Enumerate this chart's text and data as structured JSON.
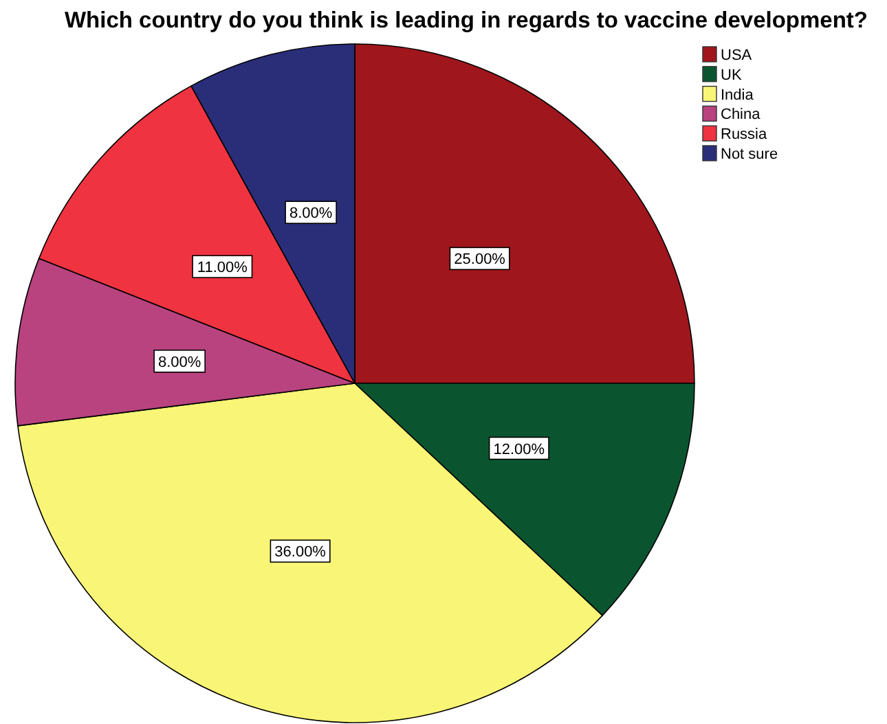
{
  "chart_data": {
    "type": "pie",
    "title": "Which country do you think is leading in regards to vaccine development?",
    "categories": [
      "USA",
      "UK",
      "India",
      "China",
      "Russia",
      "Not sure"
    ],
    "values": [
      25,
      12,
      36,
      8,
      11,
      8
    ],
    "colors": [
      "#a0161d",
      "#0a5530",
      "#f9f576",
      "#b8437f",
      "#ef3340",
      "#2a2e78"
    ],
    "value_labels": [
      "25.00%",
      "12.00%",
      "36.00%",
      "8.00%",
      "11.00%",
      "8.00%"
    ],
    "legend": "top right"
  }
}
